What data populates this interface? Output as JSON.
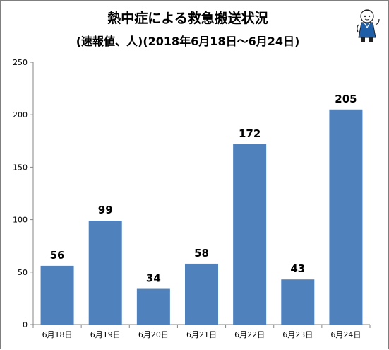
{
  "chart_data": {
    "type": "bar",
    "title": "熱中症による救急搬送状況",
    "subtitle": "(速報値、人)(2018年6月18日～6月24日)",
    "xlabel": "",
    "ylabel": "",
    "categories": [
      "6月18日",
      "6月19日",
      "6月20日",
      "6月21日",
      "6月22日",
      "6月23日",
      "6月24日"
    ],
    "values": [
      56,
      99,
      34,
      58,
      172,
      43,
      205
    ],
    "ylim": [
      0,
      250
    ],
    "yticks": [
      0,
      50,
      100,
      150,
      200,
      250
    ],
    "grid": false,
    "legend": "none",
    "bar_color": "#4f81bd",
    "axis_color": "#868686"
  },
  "mascot": {
    "icon": "mascot-character-icon"
  }
}
